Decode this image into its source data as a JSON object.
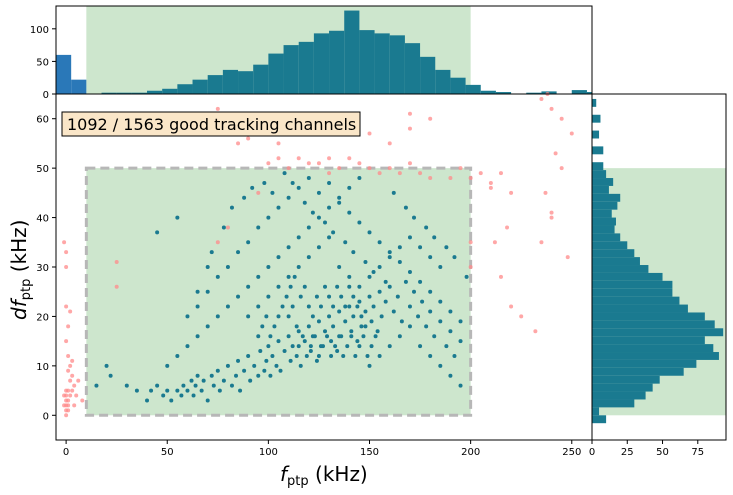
{
  "chart_data": {
    "type": "scatter",
    "annotation": "1092 / 1563 good tracking channels",
    "xlabel_main": "f",
    "xlabel_sub": "ptp",
    "xlabel_unit": " (kHz)",
    "ylabel_prefix": "d",
    "ylabel_main": "f",
    "ylabel_sub": "ptp",
    "ylabel_unit": " (kHz)",
    "xlim": [
      -5,
      260
    ],
    "ylim": [
      -5,
      65
    ],
    "x_ticks": [
      0,
      50,
      100,
      150,
      200,
      250
    ],
    "y_ticks": [
      0,
      10,
      20,
      30,
      40,
      50,
      60
    ],
    "good_region": {
      "x": [
        10,
        200
      ],
      "y": [
        0,
        50
      ]
    },
    "colors": {
      "good": "#1a7a90",
      "bad": "#ff8a8a",
      "hist_main": "#1a7a90",
      "hist_outlier": "#2a78b8",
      "region_fill": "#cde6cd",
      "region_border": "#b7b7b7",
      "annotation_bg": "#fae6c8"
    },
    "top_hist": {
      "ylim": [
        0,
        135
      ],
      "y_ticks": [
        0,
        50,
        100
      ],
      "bin_width": 7.5,
      "outlier_bins": [
        {
          "x": -5,
          "count": 60
        },
        {
          "x": 2.5,
          "count": 22
        }
      ],
      "bins": [
        {
          "x": 17.5,
          "count": 2
        },
        {
          "x": 25,
          "count": 2
        },
        {
          "x": 32.5,
          "count": 2
        },
        {
          "x": 40,
          "count": 5
        },
        {
          "x": 47.5,
          "count": 8
        },
        {
          "x": 55,
          "count": 15
        },
        {
          "x": 62.5,
          "count": 22
        },
        {
          "x": 70,
          "count": 29
        },
        {
          "x": 77.5,
          "count": 37
        },
        {
          "x": 85,
          "count": 35
        },
        {
          "x": 92.5,
          "count": 45
        },
        {
          "x": 100,
          "count": 62
        },
        {
          "x": 107.5,
          "count": 75
        },
        {
          "x": 115,
          "count": 80
        },
        {
          "x": 122.5,
          "count": 93
        },
        {
          "x": 130,
          "count": 97
        },
        {
          "x": 137.5,
          "count": 128
        },
        {
          "x": 145,
          "count": 98
        },
        {
          "x": 152.5,
          "count": 93
        },
        {
          "x": 160,
          "count": 90
        },
        {
          "x": 167.5,
          "count": 78
        },
        {
          "x": 175,
          "count": 57
        },
        {
          "x": 182.5,
          "count": 37
        },
        {
          "x": 190,
          "count": 25
        },
        {
          "x": 197.5,
          "count": 14
        },
        {
          "x": 205,
          "count": 5
        },
        {
          "x": 212.5,
          "count": 3
        },
        {
          "x": 227.5,
          "count": 2
        },
        {
          "x": 235,
          "count": 4
        },
        {
          "x": 250,
          "count": 6
        },
        {
          "x": 257.5,
          "count": 3
        }
      ]
    },
    "right_hist": {
      "xlim": [
        0,
        95
      ],
      "x_ticks": [
        0,
        25,
        50,
        75
      ],
      "bin_height": 1.6,
      "bins": [
        {
          "y": -1.6,
          "count": 10
        },
        {
          "y": 0,
          "count": 5
        },
        {
          "y": 1.6,
          "count": 30
        },
        {
          "y": 3.2,
          "count": 38
        },
        {
          "y": 4.8,
          "count": 43
        },
        {
          "y": 6.4,
          "count": 48
        },
        {
          "y": 8.0,
          "count": 65
        },
        {
          "y": 9.6,
          "count": 74
        },
        {
          "y": 11.2,
          "count": 90
        },
        {
          "y": 12.8,
          "count": 86
        },
        {
          "y": 14.4,
          "count": 80
        },
        {
          "y": 16.0,
          "count": 93
        },
        {
          "y": 17.6,
          "count": 87
        },
        {
          "y": 19.2,
          "count": 80
        },
        {
          "y": 20.8,
          "count": 68
        },
        {
          "y": 22.4,
          "count": 62
        },
        {
          "y": 24.0,
          "count": 57
        },
        {
          "y": 25.6,
          "count": 57
        },
        {
          "y": 27.2,
          "count": 50
        },
        {
          "y": 28.8,
          "count": 40
        },
        {
          "y": 30.4,
          "count": 34
        },
        {
          "y": 32.0,
          "count": 30
        },
        {
          "y": 33.6,
          "count": 25
        },
        {
          "y": 35.2,
          "count": 20
        },
        {
          "y": 36.8,
          "count": 16
        },
        {
          "y": 38.4,
          "count": 17
        },
        {
          "y": 40.0,
          "count": 14
        },
        {
          "y": 41.6,
          "count": 18
        },
        {
          "y": 43.2,
          "count": 20
        },
        {
          "y": 44.8,
          "count": 12
        },
        {
          "y": 46.4,
          "count": 15
        },
        {
          "y": 48.0,
          "count": 10
        },
        {
          "y": 49.6,
          "count": 8
        },
        {
          "y": 52.8,
          "count": 8
        },
        {
          "y": 56.0,
          "count": 5
        },
        {
          "y": 59.2,
          "count": 6
        },
        {
          "y": 62.4,
          "count": 3
        }
      ]
    },
    "bad_points": [
      [
        0,
        0
      ],
      [
        0,
        1
      ],
      [
        0,
        2
      ],
      [
        0,
        3
      ],
      [
        0,
        4
      ],
      [
        1,
        1
      ],
      [
        1,
        2
      ],
      [
        1,
        3
      ],
      [
        -1,
        2
      ],
      [
        -1,
        4
      ],
      [
        0,
        5
      ],
      [
        1,
        5
      ],
      [
        2,
        4
      ],
      [
        3,
        5
      ],
      [
        4,
        6
      ],
      [
        2,
        7
      ],
      [
        3,
        8
      ],
      [
        1,
        9
      ],
      [
        2,
        10
      ],
      [
        3,
        11
      ],
      [
        1,
        12
      ],
      [
        0,
        15
      ],
      [
        1,
        18
      ],
      [
        2,
        21
      ],
      [
        0,
        22
      ],
      [
        0,
        30
      ],
      [
        0,
        33
      ],
      [
        -1,
        35
      ],
      [
        4,
        2
      ],
      [
        5,
        4
      ],
      [
        6,
        7
      ],
      [
        8,
        3
      ],
      [
        25,
        31
      ],
      [
        25,
        26
      ],
      [
        80,
        38
      ],
      [
        75,
        35
      ],
      [
        95,
        45
      ],
      [
        100,
        51
      ],
      [
        105,
        52
      ],
      [
        110,
        50
      ],
      [
        115,
        52
      ],
      [
        120,
        51
      ],
      [
        125,
        51
      ],
      [
        130,
        49
      ],
      [
        135,
        50
      ],
      [
        140,
        52
      ],
      [
        145,
        51
      ],
      [
        150,
        50
      ],
      [
        155,
        49
      ],
      [
        160,
        50
      ],
      [
        165,
        49
      ],
      [
        170,
        51
      ],
      [
        175,
        49
      ],
      [
        180,
        48
      ],
      [
        190,
        48
      ],
      [
        195,
        50
      ],
      [
        200,
        48
      ],
      [
        205,
        49
      ],
      [
        210,
        47
      ],
      [
        200,
        35
      ],
      [
        200,
        30
      ],
      [
        75,
        62
      ],
      [
        60,
        60
      ],
      [
        90,
        56
      ],
      [
        100,
        58
      ],
      [
        105,
        55
      ],
      [
        85,
        55
      ],
      [
        170,
        61
      ],
      [
        180,
        60
      ],
      [
        170,
        58
      ],
      [
        130,
        52
      ],
      [
        150,
        57
      ],
      [
        160,
        55
      ],
      [
        210,
        46
      ],
      [
        215,
        49
      ],
      [
        220,
        45
      ],
      [
        215,
        28
      ],
      [
        220,
        22
      ],
      [
        225,
        20
      ],
      [
        218,
        38
      ],
      [
        212,
        35
      ],
      [
        232,
        17
      ],
      [
        235,
        35
      ],
      [
        237,
        45
      ],
      [
        240,
        41
      ],
      [
        242,
        53
      ],
      [
        245,
        50
      ],
      [
        248,
        32
      ],
      [
        245,
        60
      ],
      [
        240,
        62
      ],
      [
        235,
        64
      ],
      [
        238,
        65
      ],
      [
        250,
        57
      ],
      [
        240,
        40
      ]
    ],
    "good_points": [
      [
        40,
        3
      ],
      [
        42,
        5
      ],
      [
        45,
        6
      ],
      [
        48,
        4
      ],
      [
        50,
        5
      ],
      [
        52,
        3
      ],
      [
        55,
        5
      ],
      [
        57,
        4
      ],
      [
        58,
        6
      ],
      [
        60,
        5
      ],
      [
        62,
        7
      ],
      [
        63,
        4
      ],
      [
        64,
        6
      ],
      [
        65,
        8
      ],
      [
        67,
        5
      ],
      [
        68,
        7
      ],
      [
        70,
        3
      ],
      [
        72,
        8
      ],
      [
        73,
        6
      ],
      [
        75,
        9
      ],
      [
        76,
        5
      ],
      [
        78,
        7
      ],
      [
        80,
        10
      ],
      [
        82,
        6
      ],
      [
        84,
        8
      ],
      [
        85,
        11
      ],
      [
        86,
        5
      ],
      [
        88,
        9
      ],
      [
        90,
        12
      ],
      [
        91,
        7
      ],
      [
        93,
        10
      ],
      [
        95,
        8
      ],
      [
        96,
        13
      ],
      [
        98,
        9
      ],
      [
        99,
        11
      ],
      [
        100,
        14
      ],
      [
        101,
        8
      ],
      [
        102,
        12
      ],
      [
        104,
        10
      ],
      [
        105,
        15
      ],
      [
        106,
        9
      ],
      [
        108,
        13
      ],
      [
        110,
        16
      ],
      [
        111,
        11
      ],
      [
        112,
        14
      ],
      [
        114,
        12
      ],
      [
        115,
        17
      ],
      [
        116,
        10
      ],
      [
        118,
        15
      ],
      [
        120,
        18
      ],
      [
        121,
        13
      ],
      [
        122,
        16
      ],
      [
        124,
        11
      ],
      [
        125,
        19
      ],
      [
        126,
        14
      ],
      [
        128,
        17
      ],
      [
        130,
        20
      ],
      [
        131,
        15
      ],
      [
        132,
        18
      ],
      [
        134,
        13
      ],
      [
        135,
        21
      ],
      [
        136,
        16
      ],
      [
        138,
        19
      ],
      [
        140,
        22
      ],
      [
        141,
        17
      ],
      [
        142,
        20
      ],
      [
        144,
        15
      ],
      [
        145,
        23
      ],
      [
        146,
        18
      ],
      [
        148,
        21
      ],
      [
        150,
        24
      ],
      [
        151,
        19
      ],
      [
        152,
        22
      ],
      [
        154,
        17
      ],
      [
        155,
        25
      ],
      [
        156,
        20
      ],
      [
        158,
        23
      ],
      [
        160,
        26
      ],
      [
        162,
        21
      ],
      [
        164,
        24
      ],
      [
        166,
        19
      ],
      [
        168,
        27
      ],
      [
        170,
        22
      ],
      [
        172,
        25
      ],
      [
        174,
        20
      ],
      [
        176,
        23
      ],
      [
        178,
        18
      ],
      [
        180,
        21
      ],
      [
        182,
        16
      ],
      [
        185,
        19
      ],
      [
        188,
        14
      ],
      [
        190,
        17
      ],
      [
        192,
        12
      ],
      [
        195,
        15
      ],
      [
        50,
        10
      ],
      [
        55,
        12
      ],
      [
        60,
        14
      ],
      [
        65,
        16
      ],
      [
        70,
        18
      ],
      [
        75,
        20
      ],
      [
        80,
        22
      ],
      [
        85,
        24
      ],
      [
        90,
        26
      ],
      [
        95,
        28
      ],
      [
        100,
        30
      ],
      [
        105,
        32
      ],
      [
        110,
        34
      ],
      [
        115,
        36
      ],
      [
        120,
        38
      ],
      [
        125,
        40
      ],
      [
        130,
        42
      ],
      [
        135,
        44
      ],
      [
        140,
        46
      ],
      [
        145,
        48
      ],
      [
        60,
        20
      ],
      [
        65,
        22
      ],
      [
        70,
        25
      ],
      [
        75,
        28
      ],
      [
        80,
        30
      ],
      [
        85,
        33
      ],
      [
        90,
        35
      ],
      [
        95,
        38
      ],
      [
        100,
        40
      ],
      [
        105,
        42
      ],
      [
        110,
        44
      ],
      [
        115,
        46
      ],
      [
        120,
        48
      ],
      [
        125,
        45
      ],
      [
        130,
        47
      ],
      [
        135,
        43
      ],
      [
        140,
        41
      ],
      [
        145,
        39
      ],
      [
        150,
        37
      ],
      [
        155,
        35
      ],
      [
        160,
        33
      ],
      [
        165,
        31
      ],
      [
        170,
        29
      ],
      [
        175,
        27
      ],
      [
        180,
        25
      ],
      [
        185,
        23
      ],
      [
        190,
        21
      ],
      [
        195,
        19
      ],
      [
        20,
        10
      ],
      [
        22,
        8
      ],
      [
        15,
        6
      ],
      [
        30,
        6
      ],
      [
        35,
        5
      ],
      [
        45,
        37
      ],
      [
        55,
        40
      ],
      [
        65,
        25
      ],
      [
        70,
        30
      ],
      [
        72,
        33
      ],
      [
        78,
        38
      ],
      [
        82,
        42
      ],
      [
        88,
        44
      ],
      [
        92,
        46
      ],
      [
        98,
        47
      ],
      [
        102,
        45
      ],
      [
        108,
        49
      ],
      [
        112,
        47
      ],
      [
        118,
        43
      ],
      [
        122,
        41
      ],
      [
        128,
        39
      ],
      [
        132,
        37
      ],
      [
        138,
        35
      ],
      [
        142,
        33
      ],
      [
        148,
        31
      ],
      [
        152,
        29
      ],
      [
        158,
        27
      ],
      [
        162,
        45
      ],
      [
        168,
        42
      ],
      [
        172,
        40
      ],
      [
        178,
        38
      ],
      [
        182,
        36
      ],
      [
        188,
        34
      ],
      [
        192,
        32
      ],
      [
        198,
        28
      ],
      [
        90,
        20
      ],
      [
        95,
        22
      ],
      [
        100,
        24
      ],
      [
        105,
        26
      ],
      [
        110,
        28
      ],
      [
        115,
        30
      ],
      [
        120,
        32
      ],
      [
        125,
        34
      ],
      [
        130,
        36
      ],
      [
        135,
        30
      ],
      [
        140,
        28
      ],
      [
        145,
        26
      ],
      [
        150,
        28
      ],
      [
        155,
        30
      ],
      [
        160,
        32
      ],
      [
        165,
        34
      ],
      [
        170,
        36
      ],
      [
        175,
        34
      ],
      [
        180,
        32
      ],
      [
        185,
        30
      ],
      [
        110,
        20
      ],
      [
        112,
        22
      ],
      [
        114,
        18
      ],
      [
        116,
        24
      ],
      [
        118,
        26
      ],
      [
        120,
        22
      ],
      [
        122,
        20
      ],
      [
        124,
        24
      ],
      [
        126,
        22
      ],
      [
        128,
        26
      ],
      [
        130,
        24
      ],
      [
        132,
        22
      ],
      [
        134,
        26
      ],
      [
        136,
        24
      ],
      [
        138,
        22
      ],
      [
        140,
        26
      ],
      [
        142,
        24
      ],
      [
        144,
        22
      ],
      [
        146,
        20
      ],
      [
        148,
        18
      ],
      [
        115,
        14
      ],
      [
        117,
        16
      ],
      [
        119,
        12
      ],
      [
        121,
        14
      ],
      [
        123,
        16
      ],
      [
        125,
        12
      ],
      [
        127,
        14
      ],
      [
        129,
        16
      ],
      [
        131,
        12
      ],
      [
        133,
        14
      ],
      [
        135,
        16
      ],
      [
        137,
        12
      ],
      [
        139,
        14
      ],
      [
        141,
        16
      ],
      [
        143,
        12
      ],
      [
        145,
        14
      ],
      [
        147,
        16
      ],
      [
        149,
        12
      ],
      [
        151,
        14
      ],
      [
        153,
        16
      ],
      [
        95,
        16
      ],
      [
        97,
        18
      ],
      [
        99,
        20
      ],
      [
        101,
        16
      ],
      [
        103,
        18
      ],
      [
        105,
        20
      ],
      [
        107,
        22
      ],
      [
        109,
        24
      ],
      [
        111,
        26
      ],
      [
        113,
        28
      ],
      [
        150,
        10
      ],
      [
        155,
        12
      ],
      [
        160,
        14
      ],
      [
        165,
        16
      ],
      [
        170,
        18
      ],
      [
        175,
        14
      ],
      [
        180,
        12
      ],
      [
        185,
        10
      ],
      [
        190,
        8
      ],
      [
        195,
        6
      ]
    ]
  }
}
